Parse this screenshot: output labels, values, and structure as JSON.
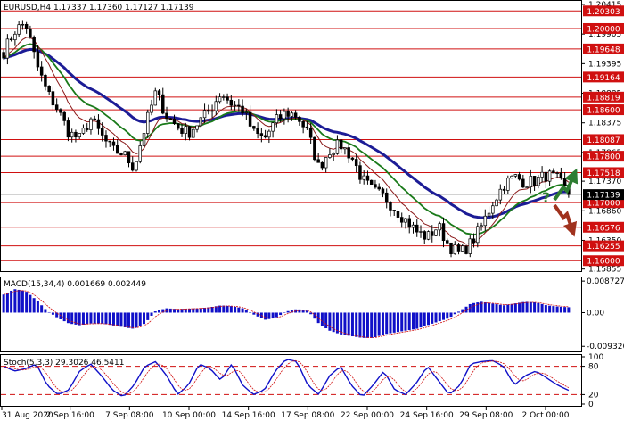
{
  "chart_data": {
    "type": "candlestick",
    "symbol_header": "EURUSD,H4  1.17337 1.17360 1.17127 1.17139",
    "price_axis": {
      "min": 1.1585,
      "max": 1.2043,
      "tick_labels": [
        "1.20415",
        "1.19905",
        "1.19395",
        "1.18885",
        "1.18375",
        "1.17865",
        "1.17370",
        "1.16860",
        "1.16350",
        "1.15855"
      ],
      "tick_values": [
        1.20415,
        1.19905,
        1.19395,
        1.18885,
        1.18375,
        1.17865,
        1.1737,
        1.1686,
        1.1635,
        1.15855
      ]
    },
    "levels": [
      {
        "label": "1.20303",
        "value": 1.20303
      },
      {
        "label": "1.20000",
        "value": 1.2
      },
      {
        "label": "1.19648",
        "value": 1.19648
      },
      {
        "label": "1.19164",
        "value": 1.19164
      },
      {
        "label": "1.18819",
        "value": 1.18819
      },
      {
        "label": "1.18600",
        "value": 1.186
      },
      {
        "label": "1.18087",
        "value": 1.18087
      },
      {
        "label": "1.17800",
        "value": 1.178
      },
      {
        "label": "1.17518",
        "value": 1.17518
      },
      {
        "label": "1.17000",
        "value": 1.17
      },
      {
        "label": "1.16576",
        "value": 1.16576
      },
      {
        "label": "1.16255",
        "value": 1.16255
      },
      {
        "label": "1.16000",
        "value": 1.16
      }
    ],
    "current_price": {
      "label": "1.17139",
      "value": 1.17139
    },
    "x_labels": [
      "31 Aug 2020",
      "2 Sep 16:00",
      "7 Sep 08:00",
      "10 Sep 00:00",
      "14 Sep 16:00",
      "17 Sep 08:00",
      "22 Sep 00:00",
      "24 Sep 16:00",
      "29 Sep 08:00",
      "2 Oct 00:00"
    ],
    "close_anchors": [
      1.196,
      1.1996,
      1.201,
      1.194,
      1.189,
      1.186,
      1.182,
      1.181,
      1.1845,
      1.1815,
      1.179,
      1.1785,
      1.176,
      1.183,
      1.189,
      1.185,
      1.183,
      1.182,
      1.184,
      1.186,
      1.189,
      1.187,
      1.186,
      1.182,
      1.181,
      1.184,
      1.1855,
      1.185,
      1.182,
      1.176,
      1.179,
      1.18,
      1.178,
      1.174,
      1.172,
      1.171,
      1.169,
      1.167,
      1.165,
      1.164,
      1.166,
      1.1625,
      1.1612,
      1.163,
      1.166,
      1.17,
      1.173,
      1.1745,
      1.1735,
      1.1738,
      1.1748,
      1.174,
      1.1714
    ],
    "moving_averages": [
      {
        "color": "#1c1c96",
        "period": "slow",
        "width": 3
      },
      {
        "color": "#1a7a1a",
        "period": "medium",
        "width": 1.8
      },
      {
        "color": "#8b1a1a",
        "period": "fast",
        "width": 1
      }
    ],
    "forecast": {
      "question_mark": "?",
      "up_arrow_color": "#2e7d32",
      "down_arrow_color": "#a0321e"
    },
    "macd": {
      "label": "MACD(15,34,4) 0.001669 0.002449",
      "tick_labels": [
        "0.008727",
        "0.00",
        "-0.009326"
      ],
      "tick_values": [
        0.008727,
        0.0,
        -0.009326
      ],
      "range": [
        -0.0105,
        0.0095
      ],
      "anchors": [
        0.005,
        0.0065,
        0.006,
        0.0035,
        0.0005,
        -0.0015,
        -0.003,
        -0.0035,
        -0.003,
        -0.003,
        -0.0035,
        -0.004,
        -0.0045,
        -0.003,
        0.0005,
        0.0012,
        0.001,
        0.0011,
        0.0012,
        0.0015,
        0.002,
        0.0018,
        0.0012,
        -0.0005,
        -0.002,
        -0.0015,
        0.0003,
        0.001,
        0.0005,
        -0.003,
        -0.005,
        -0.006,
        -0.0065,
        -0.007,
        -0.007,
        -0.006,
        -0.0055,
        -0.005,
        -0.0045,
        -0.0035,
        -0.0025,
        -0.0015,
        0.0005,
        0.0025,
        0.003,
        0.0025,
        0.002,
        0.0025,
        0.003,
        0.0028,
        0.002,
        0.0017,
        0.0015
      ]
    },
    "stochastic": {
      "label": "Stoch(5,3,3) 29.3026 46.5411",
      "tick_labels": [
        "100",
        "80",
        "20",
        "0"
      ],
      "tick_values": [
        100,
        80,
        20,
        0
      ],
      "levels": [
        80,
        20
      ],
      "anchors": [
        80,
        70,
        75,
        85,
        40,
        20,
        30,
        70,
        85,
        60,
        30,
        15,
        40,
        80,
        90,
        60,
        20,
        40,
        85,
        75,
        50,
        85,
        40,
        20,
        30,
        70,
        95,
        90,
        40,
        20,
        60,
        80,
        40,
        15,
        40,
        70,
        30,
        20,
        45,
        80,
        50,
        20,
        40,
        85,
        90,
        92,
        80,
        40,
        60,
        70,
        55,
        40,
        29
      ]
    }
  }
}
